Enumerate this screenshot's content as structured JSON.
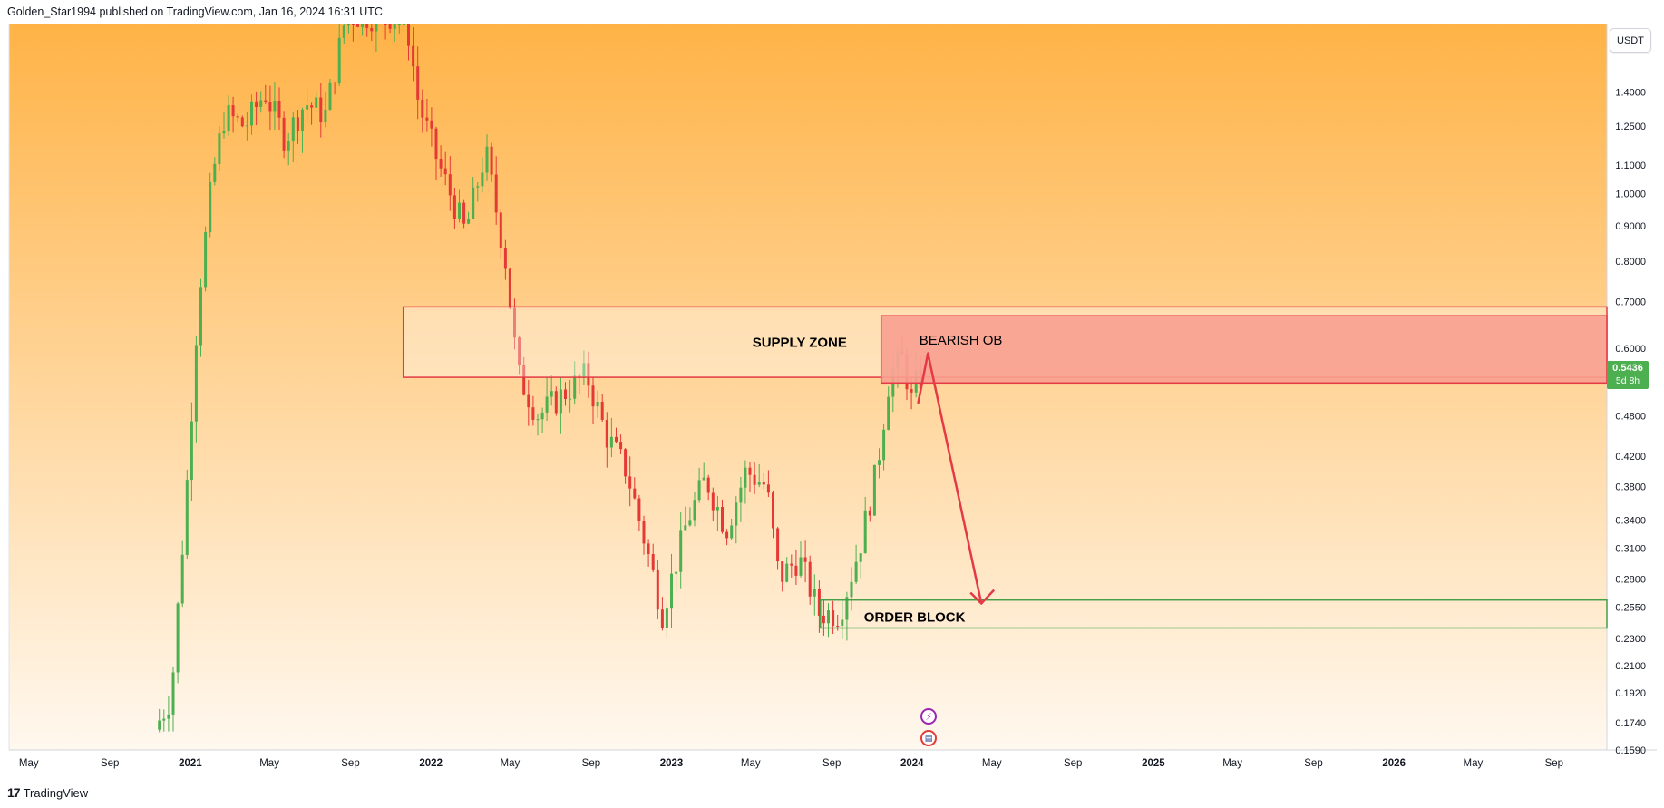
{
  "header": {
    "publisher_text": "Golden_Star1994 published on TradingView.com, Jan 16, 2024 16:31 UTC"
  },
  "footer": {
    "logo_glyph": "17",
    "brand": "TradingView"
  },
  "currency": "USDT",
  "last_price": {
    "value": "0.5436",
    "countdown": "5d 8h"
  },
  "events": {
    "lightning_glyph": "⚡",
    "flag_glyph": "▤"
  },
  "colors": {
    "bg_top": "#ffb347",
    "bg_bottom": "#fff8ef",
    "up": "#4caf50",
    "down": "#e53935",
    "supply_border": "#e53945",
    "ob_fill": "#f8a090",
    "green_zone": "#43a047",
    "arrow": "#e53945"
  },
  "chart_data": {
    "type": "candlestick",
    "title": "",
    "scale": "log",
    "y_range": [
      0.159,
      1.75
    ],
    "y_ticks": [
      "1.4000",
      "1.2500",
      "1.1000",
      "1.0000",
      "0.9000",
      "0.8000",
      "0.7000",
      "0.6000",
      "0.4800",
      "0.4200",
      "0.3800",
      "0.3400",
      "0.3100",
      "0.2800",
      "0.2550",
      "0.2300",
      "0.2100",
      "0.1920",
      "0.1740",
      "0.1590"
    ],
    "x_range": [
      "2020-04-01",
      "2026-11-20"
    ],
    "x_ticks": [
      {
        "label": "May",
        "date": "2020-05-01",
        "bold": false
      },
      {
        "label": "Sep",
        "date": "2020-09-01",
        "bold": false
      },
      {
        "label": "2021",
        "date": "2021-01-01",
        "bold": true
      },
      {
        "label": "May",
        "date": "2021-05-01",
        "bold": false
      },
      {
        "label": "Sep",
        "date": "2021-09-01",
        "bold": false
      },
      {
        "label": "2022",
        "date": "2022-01-01",
        "bold": true
      },
      {
        "label": "May",
        "date": "2022-05-01",
        "bold": false
      },
      {
        "label": "Sep",
        "date": "2022-09-01",
        "bold": false
      },
      {
        "label": "2023",
        "date": "2023-01-01",
        "bold": true
      },
      {
        "label": "May",
        "date": "2023-05-01",
        "bold": false
      },
      {
        "label": "Sep",
        "date": "2023-09-01",
        "bold": false
      },
      {
        "label": "2024",
        "date": "2024-01-01",
        "bold": true
      },
      {
        "label": "May",
        "date": "2024-05-01",
        "bold": false
      },
      {
        "label": "Sep",
        "date": "2024-09-01",
        "bold": false
      },
      {
        "label": "2025",
        "date": "2025-01-01",
        "bold": true
      },
      {
        "label": "May",
        "date": "2025-05-01",
        "bold": false
      },
      {
        "label": "Sep",
        "date": "2025-09-01",
        "bold": false
      },
      {
        "label": "2026",
        "date": "2026-01-01",
        "bold": true
      },
      {
        "label": "May",
        "date": "2026-05-01",
        "bold": false
      },
      {
        "label": "Sep",
        "date": "2026-09-01",
        "bold": false
      }
    ],
    "price_path": [
      [
        "2020-11-15",
        0.17
      ],
      [
        "2020-12-10",
        0.19
      ],
      [
        "2021-01-01",
        0.36
      ],
      [
        "2021-01-20",
        0.7
      ],
      [
        "2021-02-10",
        1.05
      ],
      [
        "2021-03-01",
        1.3
      ],
      [
        "2021-04-01",
        1.25
      ],
      [
        "2021-05-01",
        1.4
      ],
      [
        "2021-06-01",
        1.2
      ],
      [
        "2021-07-01",
        1.35
      ],
      [
        "2021-08-01",
        1.3
      ],
      [
        "2021-09-01",
        1.8
      ],
      [
        "2021-12-01",
        1.8
      ],
      [
        "2021-12-20",
        1.35
      ],
      [
        "2022-01-20",
        1.1
      ],
      [
        "2022-03-01",
        0.88
      ],
      [
        "2022-04-01",
        1.15
      ],
      [
        "2022-05-01",
        0.8
      ],
      [
        "2022-05-20",
        0.55
      ],
      [
        "2022-06-20",
        0.48
      ],
      [
        "2022-08-01",
        0.52
      ],
      [
        "2022-09-01",
        0.55
      ],
      [
        "2022-10-01",
        0.45
      ],
      [
        "2022-11-01",
        0.4
      ],
      [
        "2022-12-01",
        0.31
      ],
      [
        "2022-12-25",
        0.25
      ],
      [
        "2023-02-01",
        0.34
      ],
      [
        "2023-03-01",
        0.39
      ],
      [
        "2023-04-01",
        0.33
      ],
      [
        "2023-05-01",
        0.4
      ],
      [
        "2023-06-01",
        0.38
      ],
      [
        "2023-06-20",
        0.28
      ],
      [
        "2023-07-20",
        0.3
      ],
      [
        "2023-08-20",
        0.25
      ],
      [
        "2023-09-20",
        0.25
      ],
      [
        "2023-10-20",
        0.31
      ],
      [
        "2023-11-15",
        0.4
      ],
      [
        "2023-12-05",
        0.55
      ],
      [
        "2023-12-25",
        0.58
      ],
      [
        "2024-01-08",
        0.5
      ],
      [
        "2024-01-16",
        0.5436
      ]
    ],
    "annotations": [
      {
        "type": "rect",
        "label": "SUPPLY ZONE",
        "x0": "2021-11-20",
        "x1": "2026-11-20",
        "y0": 0.545,
        "y1": 0.688,
        "style": "outline"
      },
      {
        "type": "rect",
        "label": "BEARISH OB",
        "x0": "2023-11-15",
        "x1": "2026-11-20",
        "y0": 0.535,
        "y1": 0.668,
        "style": "filled"
      },
      {
        "type": "rect",
        "label": "ORDER BLOCK",
        "x0": "2023-08-15",
        "x1": "2026-11-20",
        "y0": 0.238,
        "y1": 0.261,
        "style": "outline-green"
      },
      {
        "type": "arrow",
        "points": [
          [
            "2024-01-10",
            0.5
          ],
          [
            "2024-01-25",
            0.59
          ],
          [
            "2024-04-15",
            0.258
          ]
        ]
      }
    ]
  }
}
